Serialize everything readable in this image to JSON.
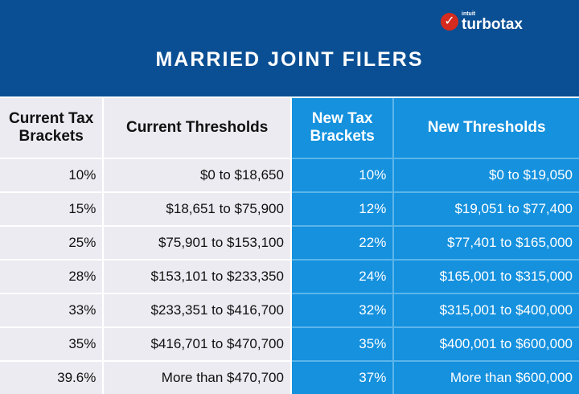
{
  "logo": {
    "brand_small": "intuit",
    "brand": "turbotax",
    "icon": "checkmark-icon"
  },
  "title": "MARRIED JOINT FILERS",
  "colors": {
    "header": "#0a4f94",
    "current_bg": "#ebebf1",
    "new_bg": "#1591de",
    "logo_red": "#d52b1e"
  },
  "table": {
    "headers": [
      "Current Tax Brackets",
      "Current Thresholds",
      "New Tax Brackets",
      "New Thresholds"
    ],
    "rows": [
      [
        "10%",
        "$0 to $18,650",
        "10%",
        "$0 to $19,050"
      ],
      [
        "15%",
        "$18,651 to $75,900",
        "12%",
        "$19,051 to $77,400"
      ],
      [
        "25%",
        "$75,901 to $153,100",
        "22%",
        "$77,401 to $165,000"
      ],
      [
        "28%",
        "$153,101 to $233,350",
        "24%",
        "$165,001 to $315,000"
      ],
      [
        "33%",
        "$233,351 to $416,700",
        "32%",
        "$315,001 to $400,000"
      ],
      [
        "35%",
        "$416,701 to $470,700",
        "35%",
        "$400,001 to $600,000"
      ],
      [
        "39.6%",
        "More than $470,700",
        "37%",
        "More than $600,000"
      ]
    ]
  }
}
